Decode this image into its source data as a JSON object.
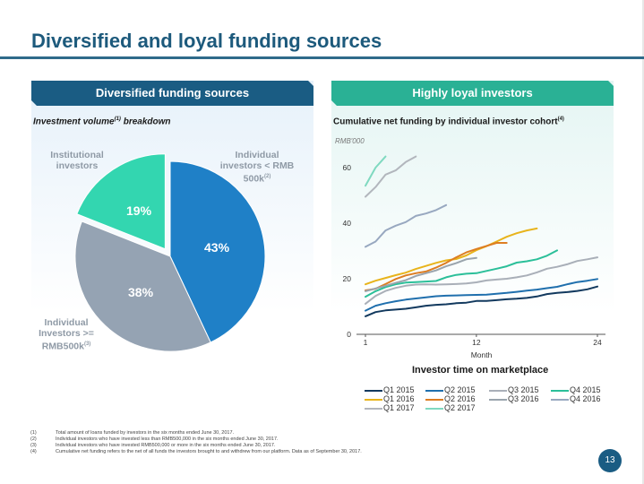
{
  "page": {
    "title": "Diversified and loyal funding sources",
    "page_number": "13"
  },
  "left_panel": {
    "header": "Diversified funding sources",
    "subtitle_main": "Investment volume",
    "subtitle_sup": "(1)",
    "subtitle_rest": " breakdown"
  },
  "right_panel": {
    "header": "Highly loyal investors",
    "subtitle_main": "Cumulative net funding by individual investor cohort",
    "subtitle_sup": "(4)",
    "unit": "RMB'000"
  },
  "chart_data": [
    {
      "type": "pie",
      "title": "Investment volume breakdown",
      "slices": [
        {
          "label": "Individual investors < RMB 500k",
          "label_lines": [
            "Individual",
            "investors < RMB",
            "500k"
          ],
          "sup": "(2)",
          "value": 43,
          "display": "43%",
          "color": "#1f80c7",
          "exploded": false
        },
        {
          "label": "Individual Investors >= RMB500k",
          "label_lines": [
            "Individual",
            "Investors >=",
            "RMB500k"
          ],
          "sup": "(3)",
          "value": 38,
          "display": "38%",
          "color": "#95a3b3",
          "exploded": false
        },
        {
          "label": "Institutional investors",
          "label_lines": [
            "Institutional",
            "investors"
          ],
          "sup": "",
          "value": 19,
          "display": "19%",
          "color": "#33d6b0",
          "exploded": true
        }
      ]
    },
    {
      "type": "line",
      "title": "Cumulative net funding by individual investor cohort",
      "xlabel": "Month",
      "ylabel": "RMB'000",
      "legend_title": "Investor time on marketplace",
      "legend_position": "bottom",
      "xlim": [
        1,
        24
      ],
      "ylim": [
        0,
        66
      ],
      "xticks": [
        1,
        12,
        24
      ],
      "yticks": [
        0,
        20,
        40,
        60
      ],
      "grid": false,
      "series": [
        {
          "name": "Q1 2015",
          "color": "#12395e",
          "values": [
            6.5,
            8,
            8.6,
            8.9,
            9.2,
            9.7,
            10.3,
            10.6,
            10.8,
            11.2,
            11.4,
            12,
            12,
            12.3,
            12.6,
            12.8,
            13.1,
            13.6,
            14.5,
            14.9,
            15.2,
            15.6,
            16.2,
            17.2
          ]
        },
        {
          "name": "Q2 2015",
          "color": "#1f6fad",
          "values": [
            8.5,
            10.3,
            11.2,
            11.9,
            12.5,
            12.9,
            13.3,
            13.7,
            13.9,
            14,
            14.1,
            14.2,
            14.3,
            14.6,
            14.9,
            15.3,
            15.7,
            16.1,
            16.6,
            17.1,
            18,
            18.8,
            19.3,
            19.9
          ]
        },
        {
          "name": "Q3 2015",
          "color": "#a9afb8",
          "values": [
            11,
            13.8,
            15.6,
            16.7,
            17.5,
            17.9,
            18,
            17.9,
            18,
            18.1,
            18.3,
            18.7,
            19.4,
            19.7,
            20,
            20.5,
            21.2,
            22.3,
            23.6,
            24.3,
            25.2,
            26.4,
            27,
            27.7
          ]
        },
        {
          "name": "Q4 2015",
          "color": "#2bbf99",
          "values": [
            13.5,
            15.5,
            17,
            18,
            18.6,
            18.8,
            19,
            19.2,
            20.5,
            21.4,
            21.8,
            22,
            22.8,
            23.6,
            24.5,
            25.8,
            26.3,
            27,
            28.3,
            30.2
          ]
        },
        {
          "name": "Q1 2016",
          "color": "#e8b41c",
          "values": [
            18,
            19.3,
            20.3,
            21.3,
            22.2,
            23.5,
            24.6,
            25.7,
            26.6,
            27.1,
            28.4,
            30.3,
            31.7,
            33.4,
            35.1,
            36.4,
            37.4,
            38.1
          ]
        },
        {
          "name": "Q2 2016",
          "color": "#dd7d22",
          "values": [
            15.8,
            16.4,
            18.1,
            19.9,
            21.2,
            22,
            22.6,
            24,
            25.7,
            27.7,
            29.5,
            30.7,
            31.8,
            32.9,
            32.9
          ]
        },
        {
          "name": "Q3 2016",
          "color": "#9aa4ad",
          "values": [
            15.5,
            16.5,
            17.5,
            18.5,
            19.5,
            21,
            22,
            23,
            24.5,
            25.6,
            27,
            27.5
          ]
        },
        {
          "name": "Q4 2016",
          "color": "#98a8c0",
          "values": [
            31.5,
            33.4,
            37.4,
            39.1,
            40.4,
            42.6,
            43.5,
            44.7,
            46.5
          ]
        },
        {
          "name": "Q1 2017",
          "color": "#b2b6bd",
          "values": [
            49.5,
            53,
            57.5,
            59,
            62,
            64
          ]
        },
        {
          "name": "Q2 2017",
          "color": "#7fd9c0",
          "values": [
            53.5,
            60,
            64
          ]
        }
      ]
    }
  ],
  "footnotes": [
    {
      "num": "(1)",
      "text": "Total amount of loans funded by investors in the six months ended June 30, 2017."
    },
    {
      "num": "(2)",
      "text": "Individual investors who have invested less than RMB500,000 in the six months ended June 30, 2017."
    },
    {
      "num": "(3)",
      "text": "Individual investors who have invested RMB500,000 or more in the six months ended June 30, 2017."
    },
    {
      "num": "(4)",
      "text": "Cumulative net funding refers to the net of all funds the investors brought to and withdrew from our platform. Data as of September 30, 2017."
    }
  ]
}
